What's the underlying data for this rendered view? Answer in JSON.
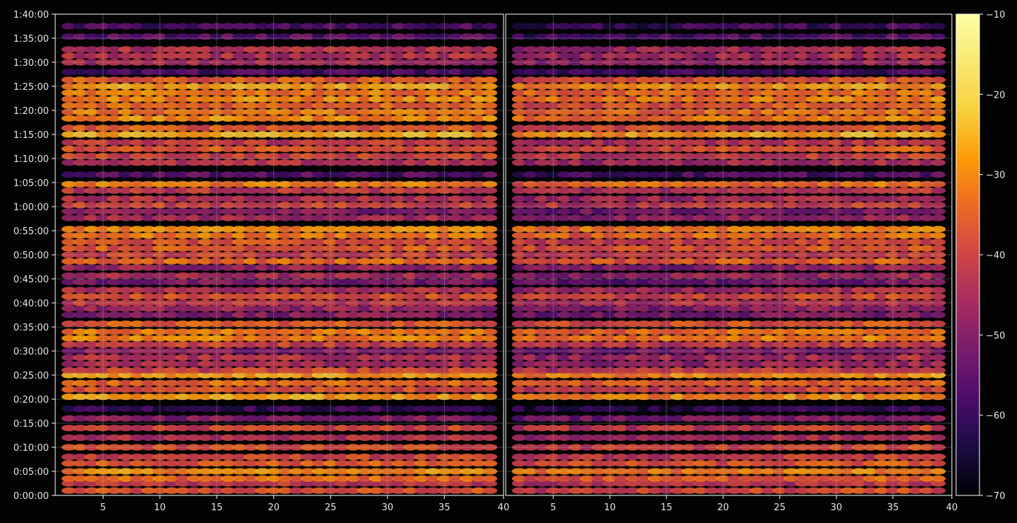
{
  "chart_data": {
    "type": "heatmap",
    "title": "",
    "xlabel": "",
    "ylabel": "",
    "panels": [
      {
        "xlim": [
          1,
          40
        ],
        "xticks": [
          {
            "value": 5,
            "label": "5"
          },
          {
            "value": 10,
            "label": "10"
          },
          {
            "value": 15,
            "label": "15"
          },
          {
            "value": 20,
            "label": "20"
          },
          {
            "value": 25,
            "label": "25"
          },
          {
            "value": 30,
            "label": "30"
          },
          {
            "value": 35,
            "label": "35"
          },
          {
            "value": 40,
            "label": "40"
          }
        ]
      },
      {
        "xlim": [
          1,
          40
        ],
        "xticks": [
          {
            "value": 5,
            "label": "5"
          },
          {
            "value": 10,
            "label": "10"
          },
          {
            "value": 15,
            "label": "15"
          },
          {
            "value": 20,
            "label": "20"
          },
          {
            "value": 25,
            "label": "25"
          },
          {
            "value": 30,
            "label": "30"
          },
          {
            "value": 35,
            "label": "35"
          },
          {
            "value": 40,
            "label": "40"
          }
        ]
      }
    ],
    "ylim_seconds": [
      0,
      6000
    ],
    "yticks": [
      {
        "value": 0,
        "label": "0:00:00"
      },
      {
        "value": 300,
        "label": "0:05:00"
      },
      {
        "value": 600,
        "label": "0:10:00"
      },
      {
        "value": 900,
        "label": "0:15:00"
      },
      {
        "value": 1200,
        "label": "0:20:00"
      },
      {
        "value": 1500,
        "label": "0:25:00"
      },
      {
        "value": 1800,
        "label": "0:30:00"
      },
      {
        "value": 2100,
        "label": "0:35:00"
      },
      {
        "value": 2400,
        "label": "0:40:00"
      },
      {
        "value": 2700,
        "label": "0:45:00"
      },
      {
        "value": 3000,
        "label": "0:50:00"
      },
      {
        "value": 3300,
        "label": "0:55:00"
      },
      {
        "value": 3600,
        "label": "1:00:00"
      },
      {
        "value": 3900,
        "label": "1:05:00"
      },
      {
        "value": 4200,
        "label": "1:10:00"
      },
      {
        "value": 4500,
        "label": "1:15:00"
      },
      {
        "value": 4800,
        "label": "1:20:00"
      },
      {
        "value": 5100,
        "label": "1:25:00"
      },
      {
        "value": 5400,
        "label": "1:30:00"
      },
      {
        "value": 5700,
        "label": "1:35:00"
      },
      {
        "value": 6000,
        "label": "1:40:00"
      }
    ],
    "grid": true,
    "colormap": "inferno",
    "colorbar": {
      "range": [
        -70,
        -10
      ],
      "ticks": [
        {
          "value": -10,
          "label": "−10"
        },
        {
          "value": -20,
          "label": "−20"
        },
        {
          "value": -30,
          "label": "−30"
        },
        {
          "value": -40,
          "label": "−40"
        },
        {
          "value": -50,
          "label": "−50"
        },
        {
          "value": -60,
          "label": "−60"
        },
        {
          "value": -70,
          "label": "−70"
        }
      ]
    },
    "rows": [
      {
        "t": 60,
        "v": -38
      },
      {
        "t": 150,
        "v": -42
      },
      {
        "t": 210,
        "v": -34
      },
      {
        "t": 300,
        "v": -30
      },
      {
        "t": 400,
        "v": -36
      },
      {
        "t": 480,
        "v": -40
      },
      {
        "t": 600,
        "v": -38
      },
      {
        "t": 720,
        "v": -44
      },
      {
        "t": 840,
        "v": -40
      },
      {
        "t": 960,
        "v": -50
      },
      {
        "t": 1080,
        "v": -60
      },
      {
        "t": 1230,
        "v": -28
      },
      {
        "t": 1320,
        "v": -38
      },
      {
        "t": 1400,
        "v": -34
      },
      {
        "t": 1500,
        "v": -28
      },
      {
        "t": 1560,
        "v": -40
      },
      {
        "t": 1640,
        "v": -46
      },
      {
        "t": 1720,
        "v": -44
      },
      {
        "t": 1800,
        "v": -50
      },
      {
        "t": 1880,
        "v": -40
      },
      {
        "t": 1960,
        "v": -30
      },
      {
        "t": 2040,
        "v": -32
      },
      {
        "t": 2140,
        "v": -36
      },
      {
        "t": 2250,
        "v": -50
      },
      {
        "t": 2330,
        "v": -48
      },
      {
        "t": 2400,
        "v": -42
      },
      {
        "t": 2480,
        "v": -38
      },
      {
        "t": 2560,
        "v": -44
      },
      {
        "t": 2660,
        "v": -52
      },
      {
        "t": 2740,
        "v": -46
      },
      {
        "t": 2840,
        "v": -48
      },
      {
        "t": 2920,
        "v": -34
      },
      {
        "t": 3000,
        "v": -40
      },
      {
        "t": 3080,
        "v": -36
      },
      {
        "t": 3160,
        "v": -38
      },
      {
        "t": 3240,
        "v": -32
      },
      {
        "t": 3320,
        "v": -30
      },
      {
        "t": 3460,
        "v": -46
      },
      {
        "t": 3540,
        "v": -50
      },
      {
        "t": 3620,
        "v": -40
      },
      {
        "t": 3700,
        "v": -44
      },
      {
        "t": 3800,
        "v": -42
      },
      {
        "t": 3880,
        "v": -32
      },
      {
        "t": 4000,
        "v": -56
      },
      {
        "t": 4150,
        "v": -44
      },
      {
        "t": 4230,
        "v": -40
      },
      {
        "t": 4320,
        "v": -36
      },
      {
        "t": 4400,
        "v": -42
      },
      {
        "t": 4500,
        "v": -26
      },
      {
        "t": 4580,
        "v": -36
      },
      {
        "t": 4700,
        "v": -30
      },
      {
        "t": 4780,
        "v": -32
      },
      {
        "t": 4860,
        "v": -34
      },
      {
        "t": 4940,
        "v": -30
      },
      {
        "t": 5020,
        "v": -32
      },
      {
        "t": 5100,
        "v": -28
      },
      {
        "t": 5180,
        "v": -36
      },
      {
        "t": 5280,
        "v": -58
      },
      {
        "t": 5400,
        "v": -46
      },
      {
        "t": 5480,
        "v": -44
      },
      {
        "t": 5560,
        "v": -44
      },
      {
        "t": 5720,
        "v": -56
      },
      {
        "t": 5850,
        "v": -58
      }
    ]
  }
}
